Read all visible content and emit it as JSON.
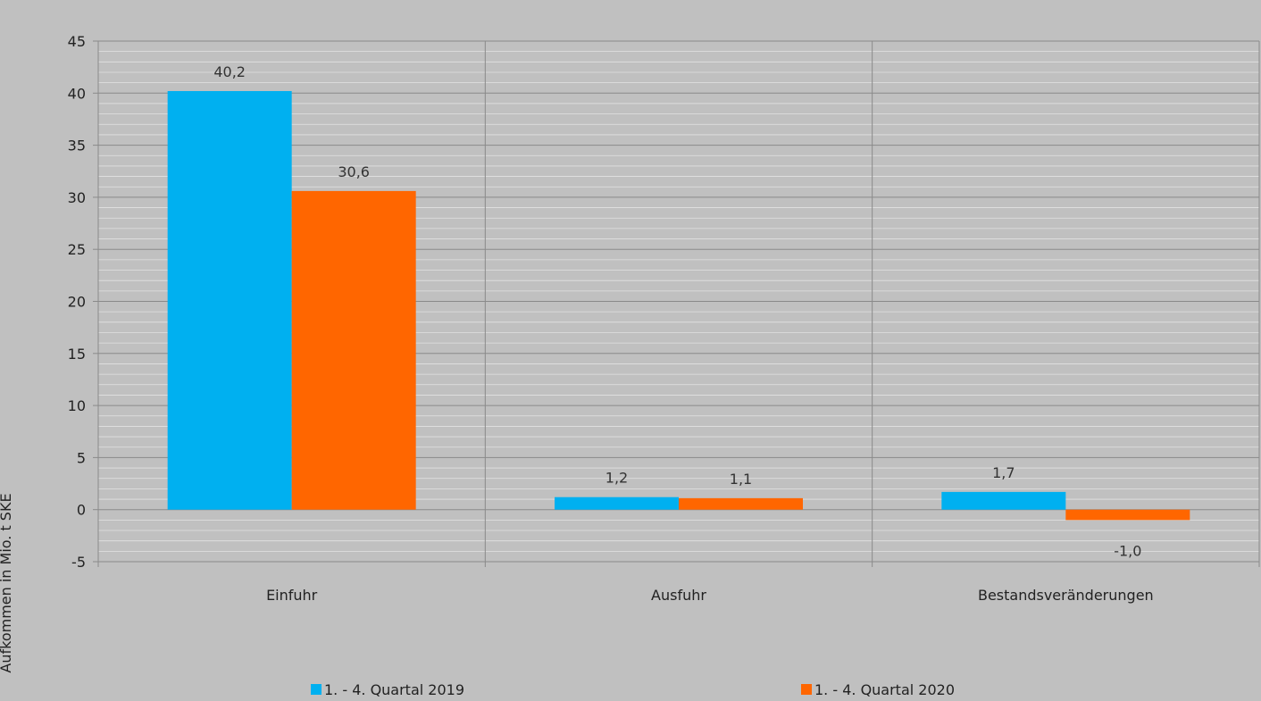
{
  "chart_data": {
    "type": "bar",
    "categories": [
      "Einfuhr",
      "Ausfuhr",
      "Bestandsveränderungen"
    ],
    "series": [
      {
        "name": "1. - 4. Quartal 2019",
        "color": "#00b0f0",
        "values": [
          40.2,
          1.2,
          1.7
        ],
        "labels": [
          "40,2",
          "1,2",
          "1,7"
        ]
      },
      {
        "name": "1. - 4. Quartal 2020",
        "color": "#ff6600",
        "values": [
          30.6,
          1.1,
          -1.0
        ],
        "labels": [
          "30,6",
          "1,1",
          "-1,0"
        ]
      }
    ],
    "ylabel": "Aufkommen  in Mio. t SKE",
    "ylim": [
      -5,
      45
    ],
    "yticks": [
      -5,
      0,
      5,
      10,
      15,
      20,
      25,
      30,
      35,
      40,
      45
    ],
    "ytick_labels": [
      "-5",
      "0",
      "5",
      "10",
      "15",
      "20",
      "25",
      "30",
      "35",
      "40",
      "45"
    ],
    "grid": true,
    "legend_position": "bottom"
  }
}
